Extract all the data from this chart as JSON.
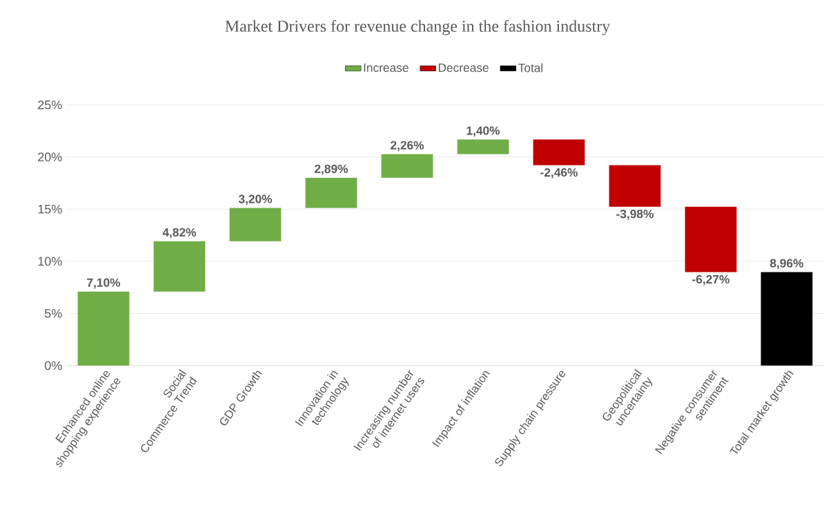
{
  "chart_data": {
    "type": "bar",
    "title": "Market Drivers for revenue change in the fashion industry",
    "categories": [
      "Enhanced online shopping experience",
      "Social Commerce Trend",
      "GDP Growth",
      "Innovation in technology",
      "Increasing number of internet users",
      "Impact of inflation",
      "Supply chain pressure",
      "Geopolitical uncertainty",
      "Negative consumer sentiment",
      "Total market growth"
    ],
    "series": [
      {
        "name": "Increase",
        "color": "#70ad47",
        "base": [
          0,
          7.1,
          11.92,
          15.12,
          18.01,
          20.27,
          null,
          null,
          null,
          null
        ],
        "values": [
          7.1,
          4.82,
          3.2,
          2.89,
          2.26,
          1.4,
          null,
          null,
          null,
          null
        ],
        "value_labels": [
          "7,10%",
          "4,82%",
          "3,20%",
          "2,89%",
          "2,26%",
          "1,40%",
          null,
          null,
          null,
          null
        ]
      },
      {
        "name": "Decrease",
        "color": "#c00000",
        "base": [
          null,
          null,
          null,
          null,
          null,
          null,
          21.67,
          19.21,
          15.23,
          null
        ],
        "values": [
          null,
          null,
          null,
          null,
          null,
          null,
          -2.46,
          -3.98,
          -6.27,
          null
        ],
        "value_labels": [
          null,
          null,
          null,
          null,
          null,
          null,
          "-2,46%",
          "-3,98%",
          "-6,27%",
          null
        ]
      },
      {
        "name": "Total",
        "color": "#000000",
        "base": [
          null,
          null,
          null,
          null,
          null,
          null,
          null,
          null,
          null,
          0
        ],
        "values": [
          null,
          null,
          null,
          null,
          null,
          null,
          null,
          null,
          null,
          8.96
        ],
        "value_labels": [
          null,
          null,
          null,
          null,
          null,
          null,
          null,
          null,
          null,
          "8,96%"
        ]
      }
    ],
    "ylim": [
      0,
      25
    ],
    "yticks": [
      {
        "value": 0,
        "label": "0%"
      },
      {
        "value": 5,
        "label": "5%"
      },
      {
        "value": 10,
        "label": "10%"
      },
      {
        "value": 15,
        "label": "15%"
      },
      {
        "value": 20,
        "label": "20%"
      },
      {
        "value": 25,
        "label": "25%"
      }
    ],
    "grid": "y",
    "legend": "top"
  }
}
